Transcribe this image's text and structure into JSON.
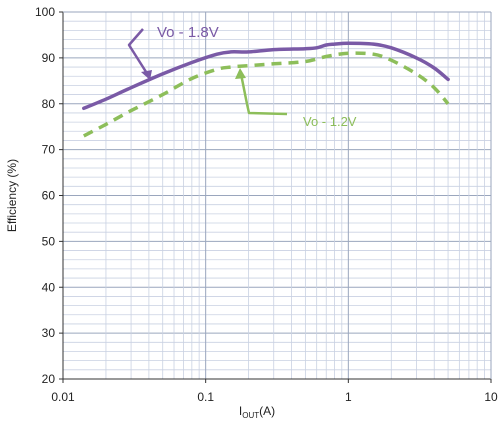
{
  "chart_data": {
    "type": "line",
    "title": "",
    "xlabel": {
      "main": "I",
      "sub": "OUT",
      "unit": "(A)"
    },
    "ylabel": "Efficiency (%)",
    "xscale": "log",
    "xlim": [
      0.01,
      10
    ],
    "ylim": [
      20,
      100
    ],
    "x_tick_labels": [
      "0.01",
      "0.1",
      "1",
      "10"
    ],
    "y_tick_labels": [
      "20",
      "30",
      "40",
      "50",
      "60",
      "70",
      "80",
      "90",
      "100"
    ],
    "grid": true,
    "series": [
      {
        "name": "Vo - 1.8V",
        "color": "#7a5aa6",
        "style": "solid",
        "x": [
          0.014,
          0.02,
          0.03,
          0.05,
          0.08,
          0.12,
          0.15,
          0.2,
          0.3,
          0.5,
          0.6,
          0.7,
          0.8,
          1.0,
          1.5,
          2.0,
          3.0,
          4.0,
          5.0
        ],
        "y": [
          79.0,
          81.0,
          83.5,
          86.5,
          89.0,
          90.8,
          91.3,
          91.3,
          91.8,
          92.0,
          92.2,
          92.8,
          93.0,
          93.2,
          93.0,
          92.2,
          90.0,
          87.8,
          85.3
        ]
      },
      {
        "name": "Vo - 1.2V",
        "color": "#8dbe5a",
        "style": "dashed",
        "x": [
          0.014,
          0.02,
          0.03,
          0.05,
          0.08,
          0.12,
          0.15,
          0.2,
          0.3,
          0.5,
          0.7,
          1.0,
          1.5,
          2.0,
          3.0,
          4.0,
          5.0
        ],
        "y": [
          73.0,
          75.5,
          78.5,
          82.0,
          85.5,
          87.5,
          88.0,
          88.3,
          88.7,
          89.2,
          90.3,
          91.0,
          90.8,
          89.5,
          86.5,
          83.5,
          80.0
        ]
      }
    ],
    "annotations": [
      {
        "text": "Vo - 1.8V",
        "color": "#7a5aa6"
      },
      {
        "text": "Vo - 1.2V",
        "color": "#8dbe5a"
      }
    ]
  }
}
